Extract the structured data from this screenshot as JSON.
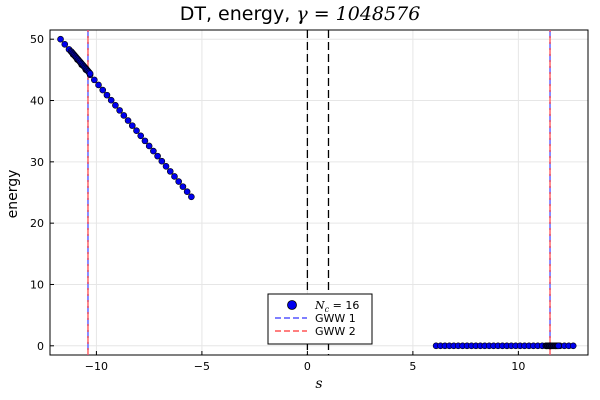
{
  "chart_data": {
    "type": "scatter",
    "title": "DT, energy, ",
    "title_math": "γ = 1048576",
    "xlabel": "s",
    "ylabel": "energy",
    "xlim": [
      -12.2,
      13.3
    ],
    "ylim": [
      -1.5,
      51.5
    ],
    "xticks": [
      -10,
      -5,
      0,
      5,
      10
    ],
    "xtick_labels": [
      "−10",
      "−5",
      "0",
      "5",
      "10"
    ],
    "yticks": [
      0,
      10,
      20,
      30,
      40,
      50
    ],
    "ytick_labels": [
      "0",
      "10",
      "20",
      "30",
      "40",
      "50"
    ],
    "grid": true,
    "legend_position": "bottom-center",
    "series": [
      {
        "name_math": "N",
        "name_sub": "c",
        "name_rest": " = 16",
        "kind": "scatter",
        "color": "#0000ee",
        "segments": [
          {
            "x_start": -11.7,
            "x_end": -5.5,
            "y_start": 50.0,
            "y_end": 24.3,
            "count": 32
          },
          {
            "x_start": -11.2,
            "x_end": -10.3,
            "y_start": 48.0,
            "y_end": 44.4,
            "count": 25
          },
          {
            "x_start": 6.1,
            "x_end": 12.6,
            "y_start": 0.0,
            "y_end": 0.0,
            "count": 32
          },
          {
            "x_start": 11.3,
            "x_end": 11.9,
            "y_start": 0.0,
            "y_end": 0.0,
            "count": 20
          }
        ]
      },
      {
        "name": "GWW 1",
        "kind": "vline",
        "color": "#5555ff",
        "x": [
          -10.4,
          11.5
        ]
      },
      {
        "name": "GWW 2",
        "kind": "vline",
        "color": "#ff5555",
        "x": [
          -10.4,
          11.5
        ]
      }
    ],
    "black_dashed_vlines": [
      0,
      1
    ]
  }
}
